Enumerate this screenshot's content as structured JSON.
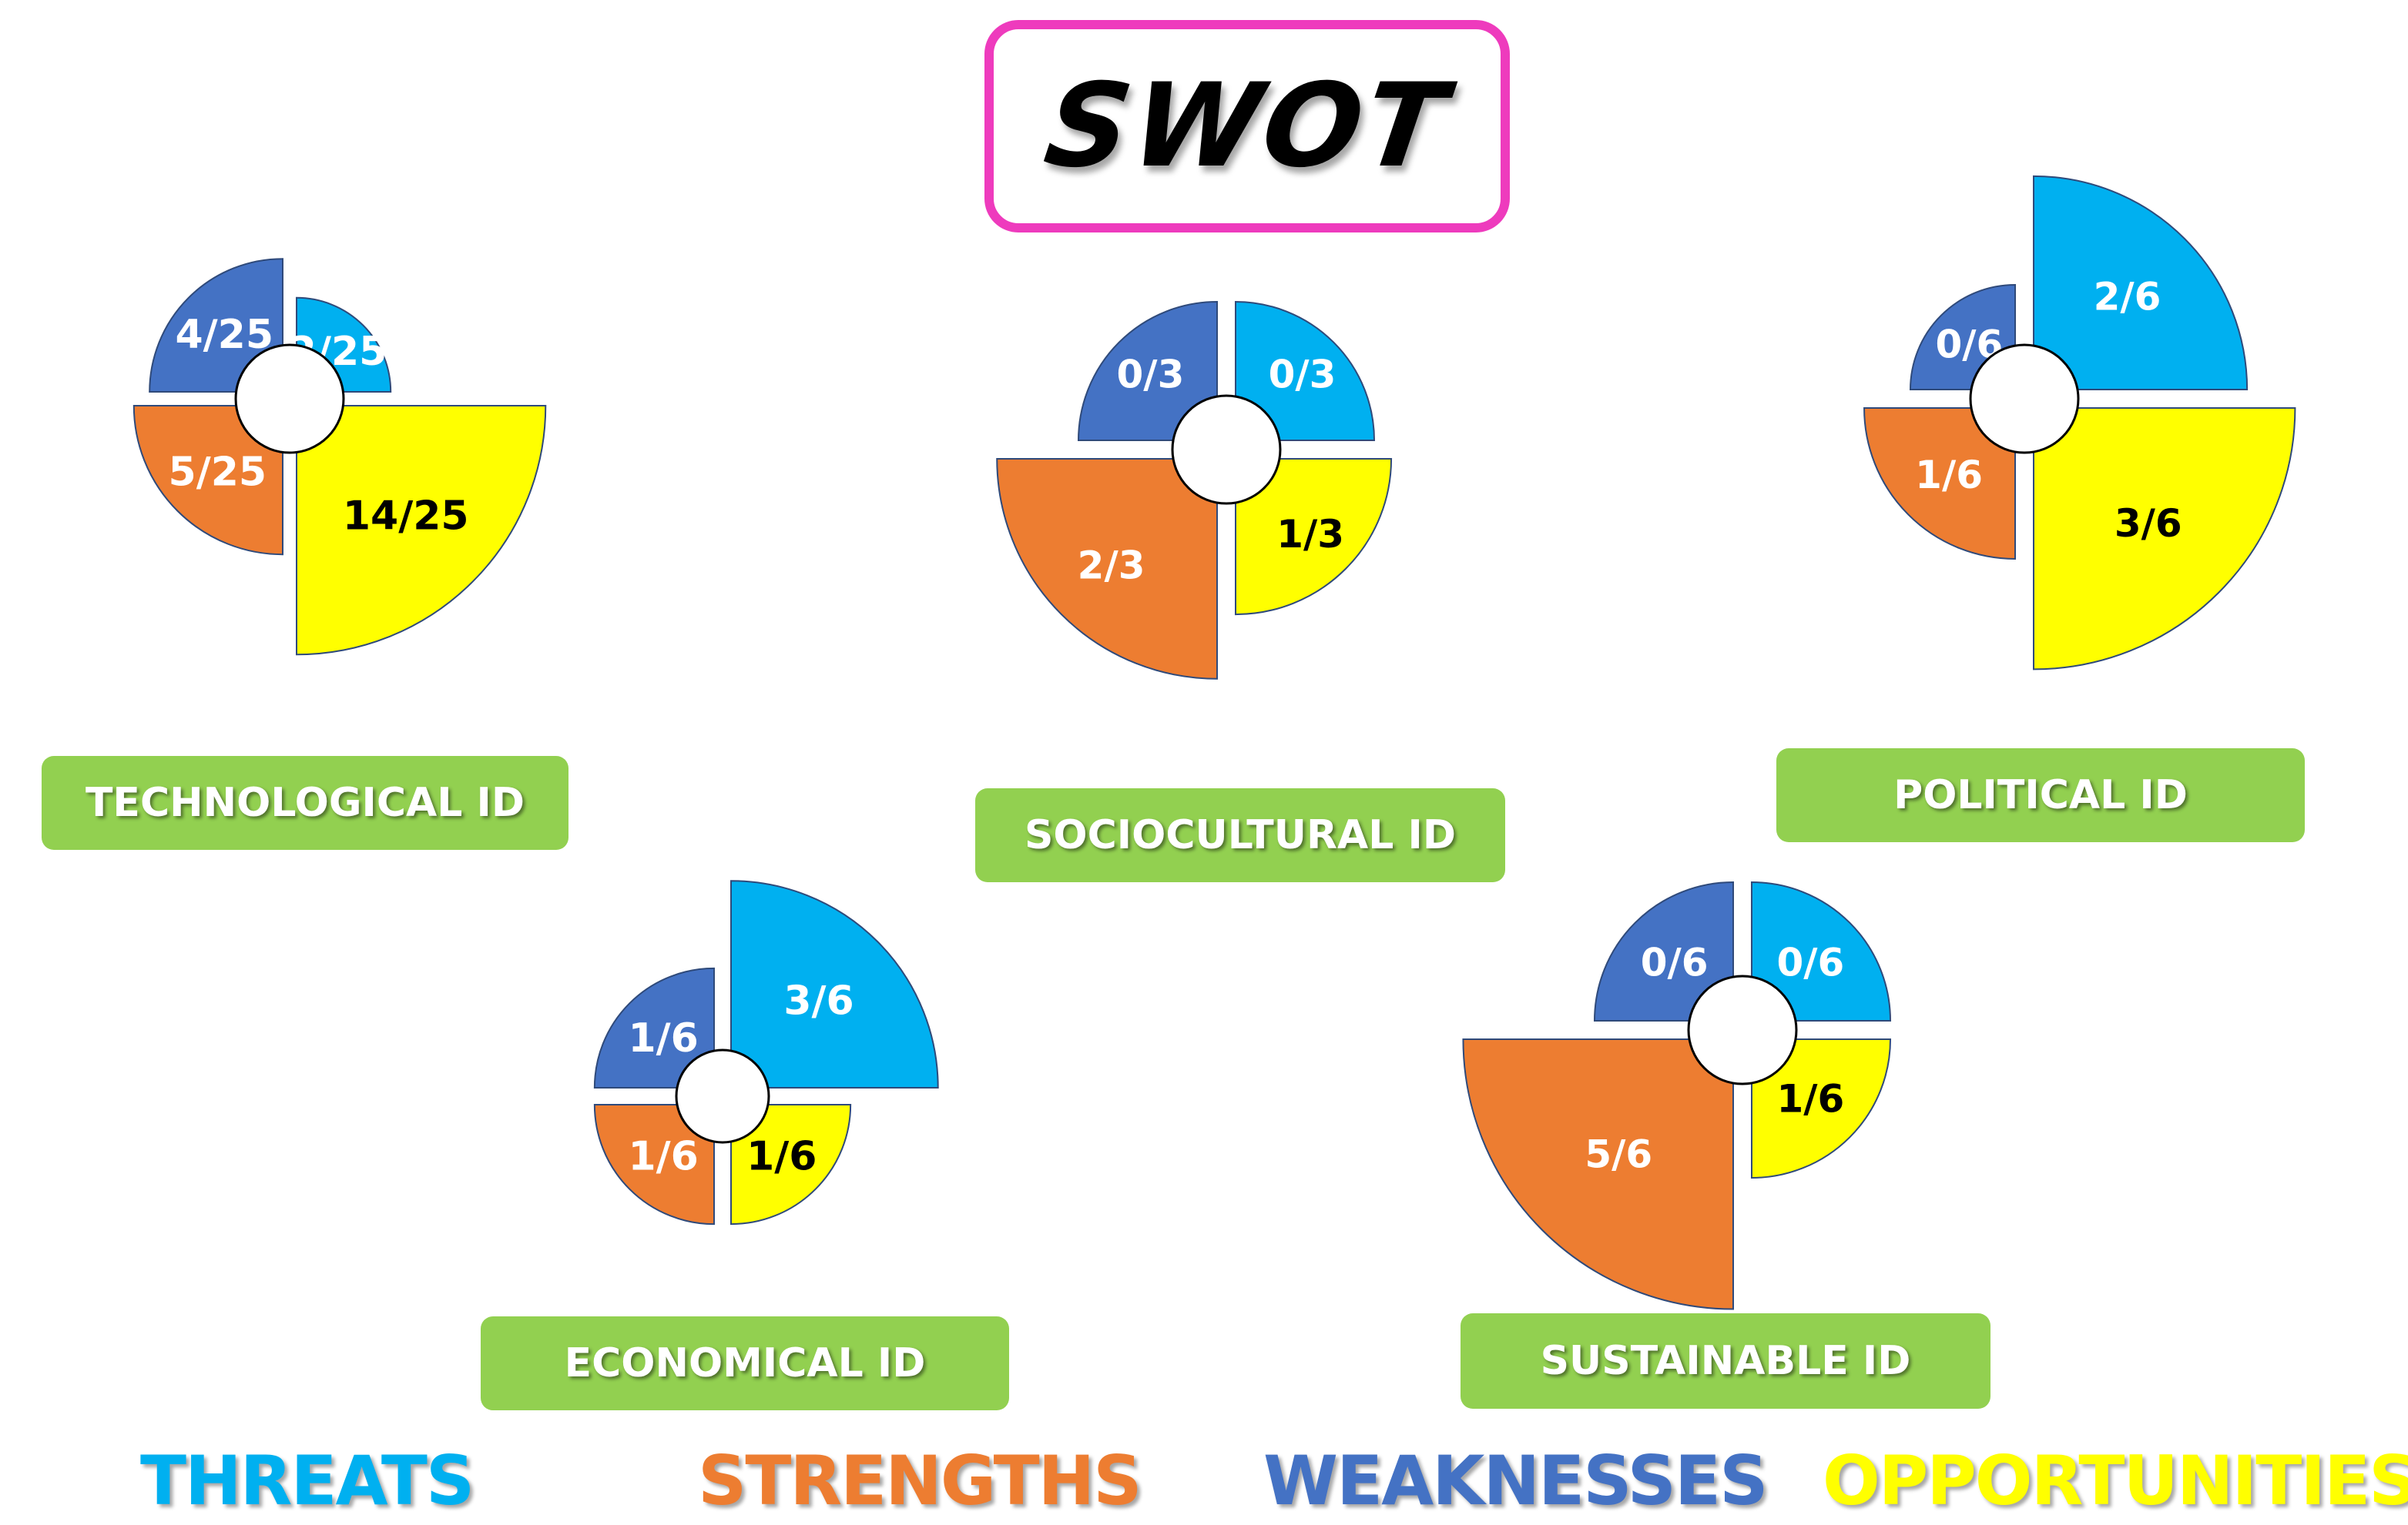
{
  "title": "SWOT",
  "colors": {
    "threats": "#00b0f0",
    "strengths": "#ed7d31",
    "weaknesses": "#4472c4",
    "opportunities": "#ffff00",
    "label_bar": "#92d050",
    "title_border": "#ee3bbd"
  },
  "legend": {
    "threats": "THREATS",
    "strengths": "STRENGTHS",
    "weaknesses": "WEAKNESSES",
    "opportunities": "OPPORTUNITIES"
  },
  "chart_data": [
    {
      "type": "pie",
      "title": "TECHNOLOGICAL ID",
      "total": 25,
      "slices": {
        "weaknesses": {
          "value": 4,
          "label": "4/25"
        },
        "threats": {
          "value": 2,
          "label": "2/25"
        },
        "strengths": {
          "value": 5,
          "label": "5/25"
        },
        "opportunities": {
          "value": 14,
          "label": "14/25"
        }
      }
    },
    {
      "type": "pie",
      "title": "SOCIOCULTURAL ID",
      "total": 3,
      "slices": {
        "weaknesses": {
          "value": 0,
          "label": "0/3"
        },
        "threats": {
          "value": 0,
          "label": "0/3"
        },
        "strengths": {
          "value": 2,
          "label": "2/3"
        },
        "opportunities": {
          "value": 1,
          "label": "1/3"
        }
      }
    },
    {
      "type": "pie",
      "title": "POLITICAL ID",
      "total": 6,
      "slices": {
        "weaknesses": {
          "value": 0,
          "label": "0/6"
        },
        "threats": {
          "value": 2,
          "label": "2/6"
        },
        "strengths": {
          "value": 1,
          "label": "1/6"
        },
        "opportunities": {
          "value": 3,
          "label": "3/6"
        }
      }
    },
    {
      "type": "pie",
      "title": "ECONOMICAL ID",
      "total": 6,
      "slices": {
        "weaknesses": {
          "value": 1,
          "label": "1/6"
        },
        "threats": {
          "value": 3,
          "label": "3/6"
        },
        "strengths": {
          "value": 1,
          "label": "1/6"
        },
        "opportunities": {
          "value": 1,
          "label": "1/6"
        }
      }
    },
    {
      "type": "pie",
      "title": "SUSTAINABLE ID",
      "total": 6,
      "slices": {
        "weaknesses": {
          "value": 0,
          "label": "0/6"
        },
        "threats": {
          "value": 0,
          "label": "0/6"
        },
        "strengths": {
          "value": 5,
          "label": "5/6"
        },
        "opportunities": {
          "value": 1,
          "label": "1/6"
        }
      }
    }
  ]
}
